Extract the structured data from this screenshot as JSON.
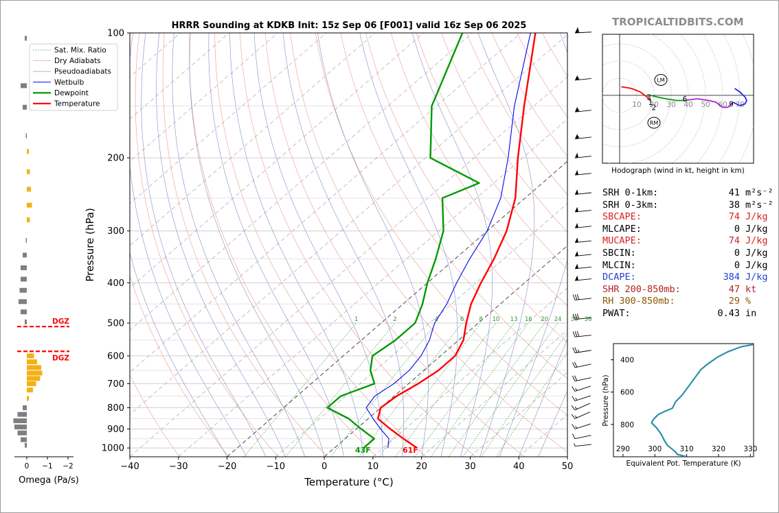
{
  "title": "HRRR Sounding at KDKB Init: 15z Sep 06 [F001] valid 16z Sep 06 2025",
  "brand": "TROPICALTIDBITS.COM",
  "colors": {
    "temperature": "#ff0000",
    "dewpoint": "#009900",
    "wetbulb": "#0000ee",
    "dry_adiabat": "#e89a9a",
    "moist_adiabat": "#8888cc",
    "mixing_ratio": "#2a9a2a",
    "isotherm": "#aaaaaa",
    "theta_e": "#2e8fa8",
    "omega_pos": "#f5b014",
    "omega_neg": "#7f7f7f",
    "dgz": "#ff0000"
  },
  "chart_data": [
    {
      "id": "skewt",
      "type": "line",
      "xlabel": "Temperature (°C)",
      "ylabel": "Pressure (hPa)",
      "xlim": [
        -40,
        50
      ],
      "ylim": [
        1050,
        100
      ],
      "x_ticks": [
        "−40",
        "−30",
        "−20",
        "−10",
        "0",
        "10",
        "20",
        "30",
        "40",
        "50"
      ],
      "p_tick_values": [
        100,
        200,
        300,
        400,
        500,
        600,
        700,
        800,
        900,
        1000
      ],
      "p_ticks": [
        "100",
        "200",
        "300",
        "400",
        "500",
        "600",
        "700",
        "800",
        "900",
        "1000"
      ],
      "mixing_ratio_labels": [
        "1",
        "2",
        "4",
        "6",
        "8",
        "10",
        "13",
        "16",
        "20",
        "24",
        "30",
        "36"
      ],
      "mixing_ratio_values": [
        1,
        2,
        4,
        6,
        8,
        10,
        13,
        16,
        20,
        24,
        30,
        36
      ],
      "legend": [
        "Sat. Mix. Ratio",
        "Dry Adiabats",
        "Pseudoadiabats",
        "Wetbulb",
        "Dewpoint",
        "Temperature"
      ],
      "surface_temp_label": "61F",
      "surface_dew_label": "43F",
      "series": [
        {
          "name": "Temperature",
          "points": [
            [
              1000,
              17
            ],
            [
              950,
              12
            ],
            [
              900,
              7
            ],
            [
              850,
              2
            ],
            [
              800,
              0
            ],
            [
              750,
              0.5
            ],
            [
              700,
              2
            ],
            [
              650,
              3
            ],
            [
              600,
              3
            ],
            [
              550,
              1
            ],
            [
              500,
              -2.5
            ],
            [
              450,
              -6
            ],
            [
              400,
              -9
            ],
            [
              350,
              -12
            ],
            [
              300,
              -16
            ],
            [
              250,
              -22
            ],
            [
              200,
              -31
            ],
            [
              150,
              -42
            ],
            [
              100,
              -57
            ]
          ]
        },
        {
          "name": "Dewpoint",
          "points": [
            [
              1000,
              6
            ],
            [
              950,
              6
            ],
            [
              900,
              1
            ],
            [
              850,
              -4
            ],
            [
              800,
              -11
            ],
            [
              750,
              -11
            ],
            [
              700,
              -7
            ],
            [
              650,
              -11
            ],
            [
              600,
              -14
            ],
            [
              550,
              -13
            ],
            [
              500,
              -13
            ],
            [
              450,
              -16
            ],
            [
              400,
              -20
            ],
            [
              350,
              -24
            ],
            [
              300,
              -29
            ],
            [
              250,
              -37
            ],
            [
              230,
              -33
            ],
            [
              200,
              -49
            ],
            [
              150,
              -61
            ],
            [
              100,
              -72
            ]
          ]
        },
        {
          "name": "Wetbulb",
          "points": [
            [
              1000,
              11
            ],
            [
              950,
              9
            ],
            [
              900,
              5
            ],
            [
              850,
              1
            ],
            [
              800,
              -3
            ],
            [
              750,
              -4
            ],
            [
              700,
              -3
            ],
            [
              650,
              -3
            ],
            [
              600,
              -4
            ],
            [
              550,
              -6
            ],
            [
              500,
              -9
            ],
            [
              450,
              -11
            ],
            [
              400,
              -14
            ],
            [
              350,
              -17
            ],
            [
              300,
              -20
            ],
            [
              250,
              -25
            ],
            [
              200,
              -33
            ],
            [
              150,
              -44
            ],
            [
              100,
              -58
            ]
          ]
        }
      ]
    },
    {
      "id": "omega",
      "type": "bar",
      "xlabel": "Omega (Pa/s)",
      "x_ticks": [
        "0",
        "−1",
        "−2"
      ],
      "dgz_label": "DGZ",
      "dgz_bounds_hpa": [
        510,
        585
      ],
      "values": [
        [
          103,
          -0.1
        ],
        [
          134,
          -0.3
        ],
        [
          151,
          -0.2
        ],
        [
          177,
          -0.05
        ],
        [
          193,
          0.1
        ],
        [
          216,
          0.15
        ],
        [
          238,
          0.2
        ],
        [
          260,
          0.25
        ],
        [
          282,
          0.15
        ],
        [
          316,
          -0.05
        ],
        [
          343,
          -0.2
        ],
        [
          368,
          -0.3
        ],
        [
          392,
          -0.3
        ],
        [
          417,
          -0.35
        ],
        [
          444,
          -0.4
        ],
        [
          470,
          -0.3
        ],
        [
          497,
          -0.1
        ],
        [
          600,
          0.35
        ],
        [
          620,
          0.5
        ],
        [
          640,
          0.7
        ],
        [
          660,
          0.75
        ],
        [
          680,
          0.65
        ],
        [
          700,
          0.45
        ],
        [
          725,
          0.3
        ],
        [
          760,
          0.1
        ],
        [
          800,
          -0.2
        ],
        [
          830,
          -0.45
        ],
        [
          860,
          -0.65
        ],
        [
          890,
          -0.6
        ],
        [
          920,
          -0.45
        ],
        [
          955,
          -0.3
        ],
        [
          985,
          -0.1
        ]
      ]
    },
    {
      "id": "hodograph",
      "type": "line",
      "xlabel": "Hodograph (wind in kt, height in km)",
      "ring_labels": [
        "10",
        "20",
        "30",
        "40",
        "50",
        "60",
        "70"
      ],
      "height_labels": [
        "1",
        "2",
        "3",
        "6",
        "9"
      ],
      "storm_motion": [
        "LM",
        "RM"
      ],
      "segments": [
        {
          "color": "#ff0000",
          "points": [
            [
              1,
              5
            ],
            [
              7,
              4
            ],
            [
              12,
              2
            ],
            [
              16,
              -1
            ],
            [
              18,
              -3
            ]
          ]
        },
        {
          "color": "#009900",
          "points": [
            [
              18,
              0
            ],
            [
              22,
              -1
            ],
            [
              27,
              -2
            ],
            [
              33,
              -3
            ],
            [
              38,
              -3
            ]
          ]
        },
        {
          "color": "#aa22cc",
          "points": [
            [
              38,
              -3
            ],
            [
              45,
              -2
            ],
            [
              52,
              -3
            ],
            [
              56,
              -4
            ],
            [
              60,
              -7
            ],
            [
              63,
              -7
            ],
            [
              66,
              -4
            ]
          ]
        },
        {
          "color": "#2222ee",
          "points": [
            [
              66,
              -4
            ],
            [
              70,
              -6
            ],
            [
              73,
              -5
            ],
            [
              74,
              -3
            ],
            [
              73,
              -1
            ],
            [
              70,
              2
            ],
            [
              67,
              4
            ]
          ]
        }
      ],
      "height_marks": [
        [
          18,
          -4
        ],
        [
          20,
          -7
        ],
        [
          17,
          -1
        ],
        [
          38,
          -2
        ],
        [
          65,
          -5
        ]
      ],
      "lm": [
        24,
        9
      ],
      "rm": [
        20,
        -16
      ]
    },
    {
      "id": "theta_e",
      "type": "line",
      "xlabel": "Equivalent Pot. Temperature (K)",
      "ylabel": "Pressure (hPa)",
      "x_ticks": [
        "290",
        "300",
        "310",
        "320",
        "330"
      ],
      "y_ticks": [
        "400",
        "600",
        "800"
      ],
      "xlim": [
        287,
        331
      ],
      "ylim": [
        1000,
        300
      ],
      "points": [
        [
          1000,
          310
        ],
        [
          985,
          307
        ],
        [
          970,
          306.5
        ],
        [
          930,
          304
        ],
        [
          900,
          303
        ],
        [
          860,
          302
        ],
        [
          820,
          300.5
        ],
        [
          790,
          299
        ],
        [
          770,
          299.5
        ],
        [
          740,
          301
        ],
        [
          720,
          303
        ],
        [
          700,
          305.5
        ],
        [
          660,
          306.5
        ],
        [
          620,
          308.5
        ],
        [
          580,
          310
        ],
        [
          540,
          311.5
        ],
        [
          500,
          313
        ],
        [
          460,
          314.5
        ],
        [
          420,
          317
        ],
        [
          380,
          320
        ],
        [
          350,
          323
        ],
        [
          320,
          327
        ],
        [
          305,
          331
        ]
      ]
    }
  ],
  "stats": [
    {
      "label": "SRH 0-1km:",
      "value": "41",
      "unit": "m²s⁻²",
      "color": "#000000"
    },
    {
      "label": "SRH 0-3km:",
      "value": "38",
      "unit": "m²s⁻²",
      "color": "#000000"
    },
    {
      "label": "SBCAPE:",
      "value": "74",
      "unit": "J/kg",
      "color": "#d62020"
    },
    {
      "label": "MLCAPE:",
      "value": "0",
      "unit": "J/kg",
      "color": "#000000"
    },
    {
      "label": "MUCAPE:",
      "value": "74",
      "unit": "J/kg",
      "color": "#d62020"
    },
    {
      "label": "SBCIN:",
      "value": "0",
      "unit": "J/kg",
      "color": "#000000"
    },
    {
      "label": "MLCIN:",
      "value": "0",
      "unit": "J/kg",
      "color": "#000000"
    },
    {
      "label": "DCAPE:",
      "value": "384",
      "unit": "J/kg",
      "color": "#1f3fcf"
    },
    {
      "label": "SHR 200-850mb:",
      "value": "47",
      "unit": "kt",
      "color": "#b22222"
    },
    {
      "label": "RH 300-850mb:",
      "value": "29",
      "unit": "%",
      "color": "#8b5a00"
    },
    {
      "label": "PWAT:",
      "value": "0.43",
      "unit": "in",
      "color": "#000000"
    }
  ],
  "wind_barbs": [
    {
      "p": 100,
      "speed": 60,
      "dir": 275
    },
    {
      "p": 130,
      "speed": 55,
      "dir": 280
    },
    {
      "p": 155,
      "speed": 55,
      "dir": 280
    },
    {
      "p": 180,
      "speed": 55,
      "dir": 280
    },
    {
      "p": 200,
      "speed": 50,
      "dir": 280
    },
    {
      "p": 220,
      "speed": 50,
      "dir": 280
    },
    {
      "p": 245,
      "speed": 50,
      "dir": 280
    },
    {
      "p": 270,
      "speed": 50,
      "dir": 280
    },
    {
      "p": 295,
      "speed": 50,
      "dir": 280
    },
    {
      "p": 320,
      "speed": 50,
      "dir": 280
    },
    {
      "p": 345,
      "speed": 50,
      "dir": 280
    },
    {
      "p": 370,
      "speed": 50,
      "dir": 280
    },
    {
      "p": 395,
      "speed": 50,
      "dir": 280
    },
    {
      "p": 440,
      "speed": 30,
      "dir": 280
    },
    {
      "p": 490,
      "speed": 30,
      "dir": 280
    },
    {
      "p": 540,
      "speed": 30,
      "dir": 280
    },
    {
      "p": 590,
      "speed": 25,
      "dir": 285
    },
    {
      "p": 640,
      "speed": 20,
      "dir": 290
    },
    {
      "p": 690,
      "speed": 20,
      "dir": 290
    },
    {
      "p": 730,
      "speed": 15,
      "dir": 300
    },
    {
      "p": 770,
      "speed": 15,
      "dir": 300
    },
    {
      "p": 810,
      "speed": 15,
      "dir": 310
    },
    {
      "p": 850,
      "speed": 15,
      "dir": 310
    },
    {
      "p": 900,
      "speed": 15,
      "dir": 300
    },
    {
      "p": 950,
      "speed": 10,
      "dir": 290
    },
    {
      "p": 990,
      "speed": 5,
      "dir": 280
    }
  ]
}
